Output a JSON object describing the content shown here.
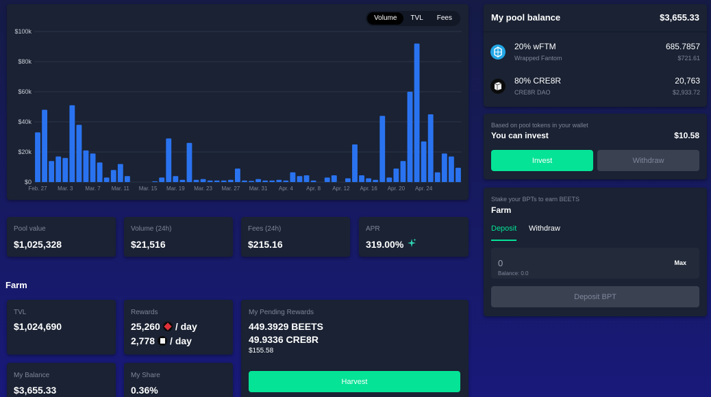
{
  "chart": {
    "toggles": [
      "Volume",
      "TVL",
      "Fees"
    ],
    "active_toggle": "Volume"
  },
  "chart_data": {
    "type": "bar",
    "y_ticks": [
      "$0",
      "$20k",
      "$40k",
      "$60k",
      "$80k",
      "$100k"
    ],
    "x_ticks": [
      "Feb. 27",
      "Mar. 3",
      "Mar. 7",
      "Mar. 11",
      "Mar. 15",
      "Mar. 19",
      "Mar. 23",
      "Mar. 27",
      "Mar. 31",
      "Apr. 4",
      "Apr. 8",
      "Apr. 12",
      "Apr. 16",
      "Apr. 20",
      "Apr. 24"
    ],
    "ylim": [
      0,
      100000
    ],
    "grid": true,
    "bar_color": "#2a73f0",
    "values": [
      33000,
      48000,
      14000,
      17000,
      16000,
      51000,
      38000,
      21000,
      19000,
      13000,
      3000,
      8000,
      12000,
      4000,
      0,
      0,
      0,
      500,
      3000,
      29000,
      4000,
      1500,
      26000,
      1500,
      2000,
      1000,
      1000,
      1000,
      1500,
      9000,
      1000,
      800,
      2000,
      1000,
      1000,
      1500,
      1000,
      6500,
      4000,
      4500,
      1000,
      0,
      3000,
      4500,
      0,
      2500,
      25000,
      4500,
      2500,
      1500,
      44000,
      3000,
      9000,
      14000,
      60000,
      92000,
      27000,
      45000,
      6500,
      19000,
      17000,
      9500
    ]
  },
  "stats": [
    {
      "label": "Pool value",
      "value": "$1,025,328"
    },
    {
      "label": "Volume (24h)",
      "value": "$21,516"
    },
    {
      "label": "Fees (24h)",
      "value": "$215.16"
    },
    {
      "label": "APR",
      "value": "319.00%"
    }
  ],
  "farm": {
    "title": "Farm",
    "tvl_label": "TVL",
    "tvl_value": "$1,024,690",
    "rewards_label": "Rewards",
    "reward_1": "25,260",
    "reward_2": "2,778",
    "per_day": "/ day",
    "pending_label": "My Pending Rewards",
    "pending_beets": "449.3929 BEETS",
    "pending_cre8r": "49.9336 CRE8R",
    "pending_usd": "$155.58",
    "harvest_label": "Harvest",
    "my_balance_label": "My Balance",
    "my_balance_value": "$3,655.33",
    "my_share_label": "My Share",
    "my_share_value": "0.36%"
  },
  "pool_balance": {
    "title": "My pool balance",
    "total": "$3,655.33",
    "tokens": [
      {
        "name": "20% wFTM",
        "sub": "Wrapped Fantom",
        "amount": "685.7857",
        "usd": "$721.61",
        "icon": "fantom-icon"
      },
      {
        "name": "80% CRE8R",
        "sub": "CRE8R DAO",
        "amount": "20,763",
        "usd": "$2,933.72",
        "icon": "cre8r-icon"
      }
    ]
  },
  "invest": {
    "caption": "Based on pool tokens in your wallet",
    "label": "You can invest",
    "amount": "$10.58",
    "invest_button": "Invest",
    "withdraw_button": "Withdraw"
  },
  "stake": {
    "caption": "Stake your BPTs to earn BEETS",
    "title": "Farm",
    "tab_deposit": "Deposit",
    "tab_withdraw": "Withdraw",
    "input_value": "0",
    "max_label": "Max",
    "balance_text": "Balance: 0.0",
    "deposit_button": "Deposit BPT"
  },
  "colors": {
    "accent_green": "#05e396",
    "card_bg": "#1a2233",
    "bar_blue": "#2a73f0"
  }
}
